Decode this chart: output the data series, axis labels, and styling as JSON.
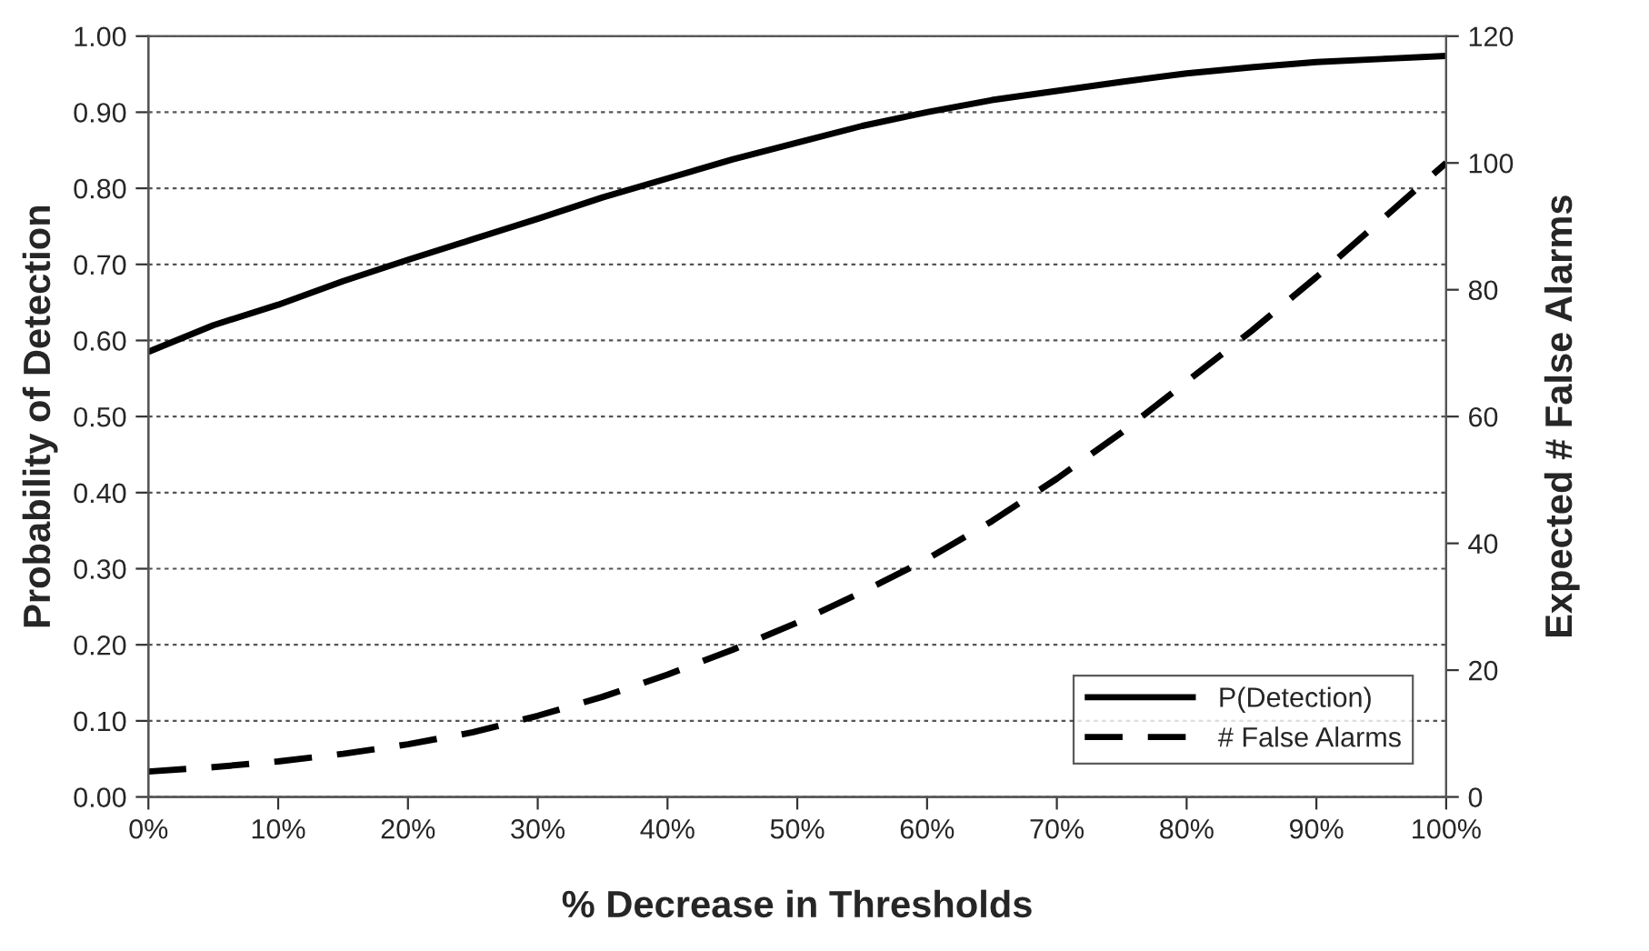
{
  "chart_data": {
    "type": "line",
    "xlabel": "% Decrease in Thresholds",
    "ylabel": "Probability of Detection",
    "y2label": "Expected # False Alarms",
    "x": [
      0,
      5,
      10,
      15,
      20,
      25,
      30,
      35,
      40,
      45,
      50,
      55,
      60,
      65,
      70,
      75,
      80,
      85,
      90,
      95,
      100
    ],
    "series": [
      {
        "name": "P(Detection)",
        "color": "#000000",
        "line_style": "solid",
        "values": [
          0.585,
          0.62,
          0.647,
          0.678,
          0.706,
          0.733,
          0.76,
          0.788,
          0.813,
          0.838,
          0.86,
          0.882,
          0.9,
          0.916,
          0.928,
          0.94,
          0.951,
          0.959,
          0.966,
          0.97,
          0.974
        ]
      },
      {
        "name": "# False Alarms",
        "color": "#000000",
        "line_style": "dashed",
        "axis": "y2",
        "values": [
          4,
          4.7,
          5.6,
          6.8,
          8.3,
          10.2,
          12.8,
          15.8,
          19.3,
          23.2,
          27.5,
          32.3,
          37.5,
          43.5,
          50.2,
          57.5,
          65.5,
          73.5,
          82,
          91,
          100
        ]
      }
    ],
    "xlim": [
      0,
      100
    ],
    "xticks": [
      {
        "value": 0,
        "label": "0%"
      },
      {
        "value": 10,
        "label": "10%"
      },
      {
        "value": 20,
        "label": "20%"
      },
      {
        "value": 30,
        "label": "30%"
      },
      {
        "value": 40,
        "label": "40%"
      },
      {
        "value": 50,
        "label": "50%"
      },
      {
        "value": 60,
        "label": "60%"
      },
      {
        "value": 70,
        "label": "70%"
      },
      {
        "value": 80,
        "label": "80%"
      },
      {
        "value": 90,
        "label": "90%"
      },
      {
        "value": 100,
        "label": "100%"
      }
    ],
    "ylim": [
      0,
      1
    ],
    "yticks": [
      {
        "value": 0,
        "label": "0.00"
      },
      {
        "value": 0.1,
        "label": "0.10"
      },
      {
        "value": 0.2,
        "label": "0.20"
      },
      {
        "value": 0.3,
        "label": "0.30"
      },
      {
        "value": 0.4,
        "label": "0.40"
      },
      {
        "value": 0.5,
        "label": "0.50"
      },
      {
        "value": 0.6,
        "label": "0.60"
      },
      {
        "value": 0.7,
        "label": "0.70"
      },
      {
        "value": 0.8,
        "label": "0.80"
      },
      {
        "value": 0.9,
        "label": "0.90"
      },
      {
        "value": 1,
        "label": "1.00"
      }
    ],
    "y2lim": [
      0,
      120
    ],
    "y2ticks": [
      0,
      20,
      40,
      60,
      80,
      100,
      120
    ],
    "grid": "y",
    "legend": "bottom right"
  }
}
